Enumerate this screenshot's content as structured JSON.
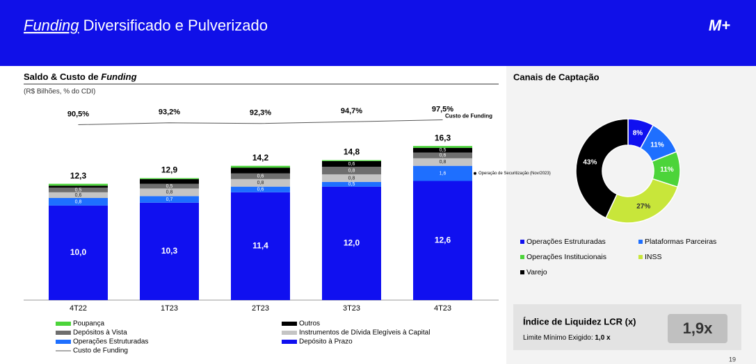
{
  "header": {
    "title_emphasis": "Funding",
    "title": "Diversificado e Pulverizado",
    "logo": "M+"
  },
  "page_number": "19",
  "chart_data": [
    {
      "type": "stacked_bar",
      "title": "Saldo & Custo de",
      "title_emphasis": "Funding",
      "subtitle": "(R$ Bilhões, % do CDI)",
      "categories": [
        "4T22",
        "1T23",
        "2T23",
        "3T23",
        "4T23"
      ],
      "ylim": [
        0,
        18
      ],
      "series": [
        {
          "name": "Depósito à Prazo",
          "color": "#1010f0",
          "values": [
            10.0,
            10.3,
            11.4,
            12.0,
            12.6
          ],
          "value_labels": [
            "10,0",
            "10,3",
            "11,4",
            "12,0",
            "12,6"
          ]
        },
        {
          "name": "Operações Estruturadas",
          "color": "#1e6fff",
          "values": [
            0.8,
            0.7,
            0.6,
            0.5,
            1.6
          ],
          "value_labels": [
            "0,8",
            "0,7",
            "0,6",
            "0,5",
            "1,6"
          ]
        },
        {
          "name": "Instrumentos de Dívida Elegíveis à Capital",
          "color": "#c4c4c4",
          "values": [
            0.6,
            0.8,
            0.8,
            0.8,
            0.8
          ],
          "value_labels": [
            "0,6",
            "0,8",
            "0,8",
            "0,8",
            "0,8"
          ]
        },
        {
          "name": "Depósitos à Vista",
          "color": "#6e6e6e",
          "values": [
            0.5,
            0.5,
            0.6,
            0.8,
            0.6
          ],
          "value_labels": [
            "0,5",
            "0,5",
            "0,6",
            "0,8",
            "0,6"
          ]
        },
        {
          "name": "Outros",
          "color": "#000000",
          "values": [
            0.2,
            0.5,
            0.6,
            0.6,
            0.5
          ],
          "value_labels": [
            null,
            null,
            null,
            "0,6",
            "0,5"
          ]
        },
        {
          "name": "Poupança",
          "color": "#4cd43a",
          "values": [
            0.2,
            0.1,
            0.2,
            0.1,
            0.2
          ],
          "value_labels": [
            null,
            null,
            null,
            null,
            null
          ]
        }
      ],
      "totals": [
        12.3,
        12.9,
        14.2,
        14.8,
        16.3
      ],
      "total_labels": [
        "12,3",
        "12,9",
        "14,2",
        "14,8",
        "16,3"
      ],
      "line": {
        "name": "Custo de Funding",
        "color": "#555555",
        "axis": "y2",
        "values": [
          90.5,
          93.2,
          92.3,
          94.7,
          97.5
        ],
        "value_labels": [
          "90,5%",
          "93,2%",
          "92,3%",
          "94,7%",
          "97,5%"
        ]
      },
      "y2lim": [
        80,
        110
      ],
      "annotation": "Operação de Securitização (Nov/2023)"
    },
    {
      "type": "donut",
      "title": "Canais de Captação",
      "categories": [
        "Operações Estruturadas",
        "Plataformas Parceiras",
        "Operações Institucionais",
        "INSS",
        "Varejo"
      ],
      "values": [
        8,
        11,
        11,
        27,
        43
      ],
      "value_labels": [
        "8%",
        "11%",
        "11%",
        "27%",
        "43%"
      ],
      "colors": [
        "#1010f0",
        "#1e6fff",
        "#4cd43a",
        "#c8e63a",
        "#000000"
      ]
    }
  ],
  "lcr": {
    "title": "Índice de Liquidez LCR (x)",
    "subtitle": "Limite Mínimo Exigido:",
    "minimum": "1,0 x",
    "value": "1,9x"
  }
}
